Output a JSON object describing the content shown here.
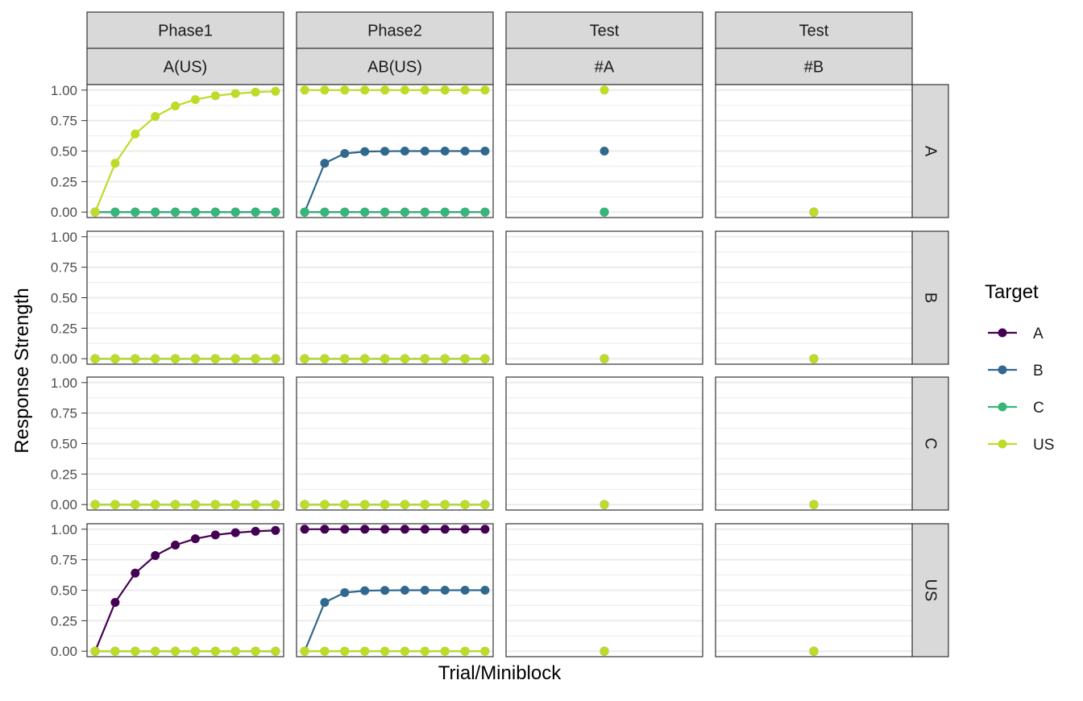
{
  "chart_data": {
    "type": "line",
    "xlabel": "Trial/Miniblock",
    "ylabel": "Response Strength",
    "ylim": [
      0,
      1
    ],
    "yticks": [
      "0.00",
      "0.25",
      "0.50",
      "0.75",
      "1.00"
    ],
    "columns": [
      {
        "top": "Phase1",
        "bottom": "A(US)",
        "n_points": 10
      },
      {
        "top": "Phase2",
        "bottom": "AB(US)",
        "n_points": 10
      },
      {
        "top": "Test",
        "bottom": "#A",
        "n_points": 1
      },
      {
        "top": "Test",
        "bottom": "#B",
        "n_points": 1
      }
    ],
    "rows": [
      "A",
      "B",
      "C",
      "US"
    ],
    "legend": {
      "title": "Target",
      "position": "right",
      "entries": [
        {
          "name": "A",
          "color": "#440154"
        },
        {
          "name": "B",
          "color": "#31688E"
        },
        {
          "name": "C",
          "color": "#35B779"
        },
        {
          "name": "US",
          "color": "#BEDB27"
        }
      ]
    },
    "panels": {
      "A": [
        {
          "A": [
            0,
            0,
            0,
            0,
            0,
            0,
            0,
            0,
            0,
            0
          ],
          "B": [
            0,
            0,
            0,
            0,
            0,
            0,
            0,
            0,
            0,
            0
          ],
          "C": [
            0,
            0,
            0,
            0,
            0,
            0,
            0,
            0,
            0,
            0
          ],
          "US": [
            0,
            0.4,
            0.64,
            0.784,
            0.87,
            0.922,
            0.953,
            0.972,
            0.983,
            0.99
          ]
        },
        {
          "A": [
            0,
            0,
            0,
            0,
            0,
            0,
            0,
            0,
            0,
            0
          ],
          "B": [
            0,
            0.4,
            0.48,
            0.496,
            0.499,
            0.5,
            0.5,
            0.5,
            0.5,
            0.5
          ],
          "C": [
            0,
            0,
            0,
            0,
            0,
            0,
            0,
            0,
            0,
            0
          ],
          "US": [
            1,
            1,
            1,
            1,
            1,
            1,
            1,
            1,
            1,
            1
          ]
        },
        {
          "A": [
            0
          ],
          "B": [
            0.5
          ],
          "C": [
            0
          ],
          "US": [
            1
          ]
        },
        {
          "A": [
            0
          ],
          "B": [
            0
          ],
          "C": [
            0
          ],
          "US": [
            0
          ]
        }
      ],
      "B": [
        {
          "A": [
            0,
            0,
            0,
            0,
            0,
            0,
            0,
            0,
            0,
            0
          ],
          "B": [
            0,
            0,
            0,
            0,
            0,
            0,
            0,
            0,
            0,
            0
          ],
          "C": [
            0,
            0,
            0,
            0,
            0,
            0,
            0,
            0,
            0,
            0
          ],
          "US": [
            0,
            0,
            0,
            0,
            0,
            0,
            0,
            0,
            0,
            0
          ]
        },
        {
          "A": [
            0,
            0,
            0,
            0,
            0,
            0,
            0,
            0,
            0,
            0
          ],
          "B": [
            0,
            0,
            0,
            0,
            0,
            0,
            0,
            0,
            0,
            0
          ],
          "C": [
            0,
            0,
            0,
            0,
            0,
            0,
            0,
            0,
            0,
            0
          ],
          "US": [
            0,
            0,
            0,
            0,
            0,
            0,
            0,
            0,
            0,
            0
          ]
        },
        {
          "A": [
            0
          ],
          "B": [
            0
          ],
          "C": [
            0
          ],
          "US": [
            0
          ]
        },
        {
          "A": [
            0
          ],
          "B": [
            0
          ],
          "C": [
            0
          ],
          "US": [
            0
          ]
        }
      ],
      "C": [
        {
          "A": [
            0,
            0,
            0,
            0,
            0,
            0,
            0,
            0,
            0,
            0
          ],
          "B": [
            0,
            0,
            0,
            0,
            0,
            0,
            0,
            0,
            0,
            0
          ],
          "C": [
            0,
            0,
            0,
            0,
            0,
            0,
            0,
            0,
            0,
            0
          ],
          "US": [
            0,
            0,
            0,
            0,
            0,
            0,
            0,
            0,
            0,
            0
          ]
        },
        {
          "A": [
            0,
            0,
            0,
            0,
            0,
            0,
            0,
            0,
            0,
            0
          ],
          "B": [
            0,
            0,
            0,
            0,
            0,
            0,
            0,
            0,
            0,
            0
          ],
          "C": [
            0,
            0,
            0,
            0,
            0,
            0,
            0,
            0,
            0,
            0
          ],
          "US": [
            0,
            0,
            0,
            0,
            0,
            0,
            0,
            0,
            0,
            0
          ]
        },
        {
          "A": [
            0
          ],
          "B": [
            0
          ],
          "C": [
            0
          ],
          "US": [
            0
          ]
        },
        {
          "A": [
            0
          ],
          "B": [
            0
          ],
          "C": [
            0
          ],
          "US": [
            0
          ]
        }
      ],
      "US": [
        {
          "A": [
            0,
            0.4,
            0.64,
            0.784,
            0.87,
            0.922,
            0.953,
            0.972,
            0.983,
            0.99
          ],
          "B": [
            0,
            0,
            0,
            0,
            0,
            0,
            0,
            0,
            0,
            0
          ],
          "C": [
            0,
            0,
            0,
            0,
            0,
            0,
            0,
            0,
            0,
            0
          ],
          "US": [
            0,
            0,
            0,
            0,
            0,
            0,
            0,
            0,
            0,
            0
          ]
        },
        {
          "A": [
            1,
            1,
            1,
            1,
            1,
            1,
            1,
            1,
            1,
            1
          ],
          "B": [
            0,
            0.4,
            0.48,
            0.496,
            0.499,
            0.5,
            0.5,
            0.5,
            0.5,
            0.5
          ],
          "C": [
            0,
            0,
            0,
            0,
            0,
            0,
            0,
            0,
            0,
            0
          ],
          "US": [
            0,
            0,
            0,
            0,
            0,
            0,
            0,
            0,
            0,
            0
          ]
        },
        {
          "A": [
            0
          ],
          "B": [
            0
          ],
          "C": [
            0
          ],
          "US": [
            0
          ]
        },
        {
          "A": [
            0
          ],
          "B": [
            0
          ],
          "C": [
            0
          ],
          "US": [
            0
          ]
        }
      ]
    }
  }
}
